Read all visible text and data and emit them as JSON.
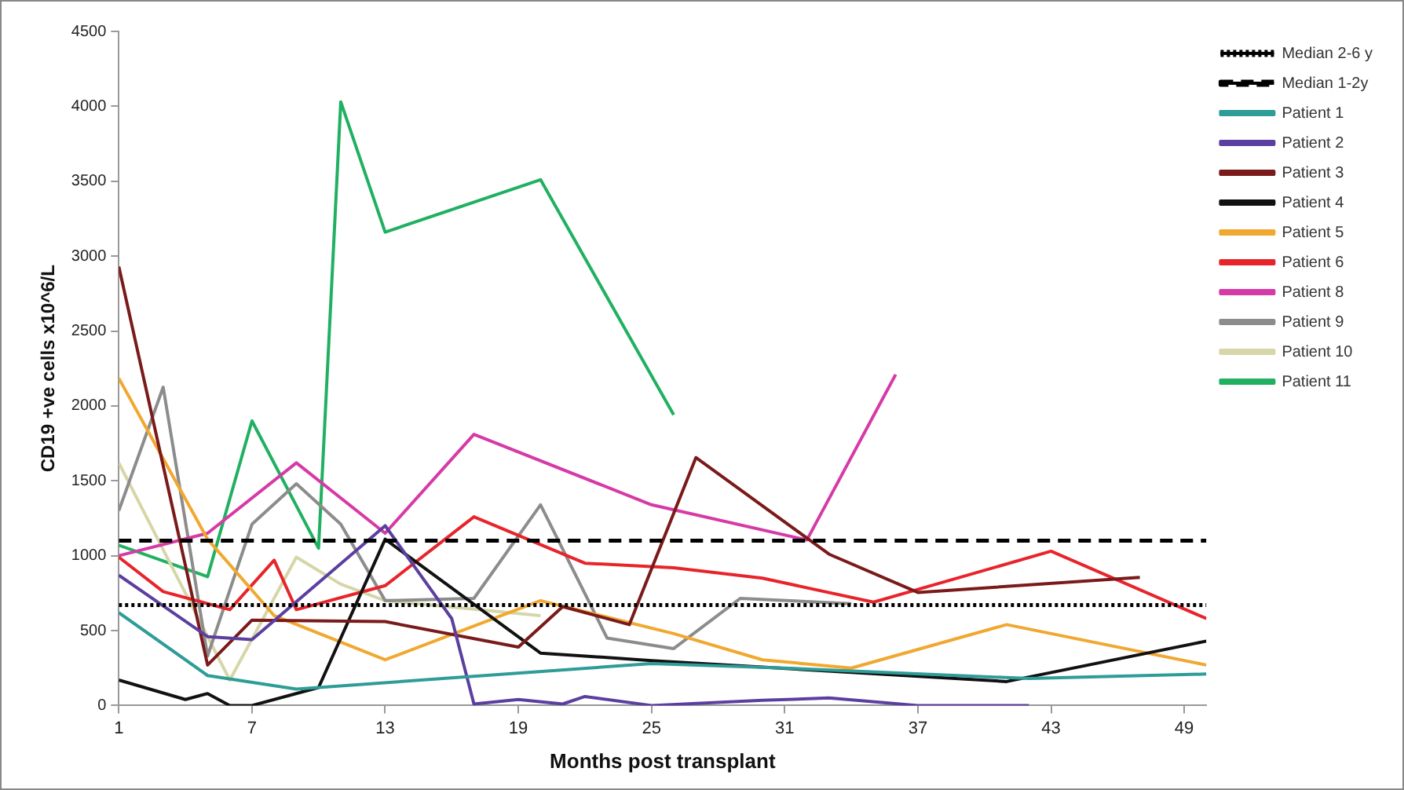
{
  "chart_data": {
    "type": "line",
    "xlabel": "Months post transplant",
    "ylabel": "CD19 +ve cells x10^6/L",
    "xlim": [
      1,
      50
    ],
    "xticks": [
      1,
      7,
      13,
      19,
      25,
      31,
      37,
      43,
      49
    ],
    "ylim": [
      0,
      4500
    ],
    "yticks": [
      0,
      500,
      1000,
      1500,
      2000,
      2500,
      3000,
      3500,
      4000,
      4500
    ],
    "grid": false,
    "legend": "top right",
    "marker": "none",
    "line_style": "solid",
    "series": [
      {
        "name": "Median 2-6 y",
        "color": "#000000",
        "line_style": "dotted",
        "x": [
          1,
          50
        ],
        "values": [
          670,
          670
        ]
      },
      {
        "name": "Median 1-2y",
        "color": "#000000",
        "line_style": "dashed",
        "x": [
          1,
          50
        ],
        "values": [
          1100,
          1100
        ]
      },
      {
        "name": "Patient 1",
        "color": "#2e9c97",
        "x": [
          1,
          5,
          9,
          25,
          31,
          42,
          50
        ],
        "values": [
          620,
          200,
          110,
          280,
          250,
          180,
          210
        ]
      },
      {
        "name": "Patient 2",
        "color": "#5b3fa0",
        "x": [
          1,
          5,
          7,
          13,
          16,
          17,
          19,
          21,
          22,
          25,
          30,
          33,
          37,
          42
        ],
        "values": [
          870,
          460,
          440,
          1200,
          580,
          10,
          40,
          10,
          60,
          0,
          35,
          50,
          0,
          0
        ]
      },
      {
        "name": "Patient 3",
        "color": "#7a1a1a",
        "x": [
          1,
          5,
          7,
          13,
          19,
          21,
          24,
          27,
          33,
          37,
          47
        ],
        "values": [
          2930,
          270,
          570,
          560,
          390,
          660,
          540,
          1655,
          1010,
          755,
          855
        ]
      },
      {
        "name": "Patient 4",
        "color": "#111111",
        "x": [
          1,
          4,
          5,
          6,
          7,
          10,
          13,
          20,
          25,
          41,
          50
        ],
        "values": [
          170,
          40,
          80,
          0,
          0,
          120,
          1110,
          350,
          300,
          160,
          430
        ]
      },
      {
        "name": "Patient 5",
        "color": "#f0a830",
        "x": [
          1,
          5,
          8,
          13,
          20,
          26,
          30,
          34,
          41,
          50
        ],
        "values": [
          2185,
          1110,
          600,
          305,
          700,
          480,
          305,
          250,
          540,
          270
        ]
      },
      {
        "name": "Patient 6",
        "color": "#e8242b",
        "x": [
          1,
          3,
          6,
          8,
          9,
          13,
          17,
          22,
          26,
          30,
          35,
          43,
          50
        ],
        "values": [
          990,
          760,
          640,
          970,
          640,
          800,
          1260,
          950,
          920,
          850,
          690,
          1030,
          580
        ]
      },
      {
        "name": "Patient 8",
        "color": "#d63aa6",
        "x": [
          1,
          5,
          9,
          13,
          17,
          25,
          32,
          36
        ],
        "values": [
          1000,
          1150,
          1620,
          1150,
          1810,
          1340,
          1105,
          2210
        ]
      },
      {
        "name": "Patient 9",
        "color": "#8c8c8c",
        "x": [
          1,
          3,
          5,
          7,
          9,
          11,
          13,
          17,
          20,
          23,
          26,
          29,
          34
        ],
        "values": [
          1300,
          2125,
          330,
          1210,
          1480,
          1210,
          700,
          715,
          1340,
          450,
          380,
          715,
          680
        ]
      },
      {
        "name": "Patient 10",
        "color": "#d6d6a8",
        "x": [
          1,
          6,
          9,
          11,
          13,
          20
        ],
        "values": [
          1620,
          170,
          990,
          810,
          700,
          600
        ]
      },
      {
        "name": "Patient 11",
        "color": "#21b062",
        "x": [
          1,
          5,
          7,
          10,
          11,
          13,
          20,
          26
        ],
        "values": [
          1070,
          860,
          1900,
          1050,
          4030,
          3160,
          3510,
          1940
        ]
      }
    ]
  }
}
